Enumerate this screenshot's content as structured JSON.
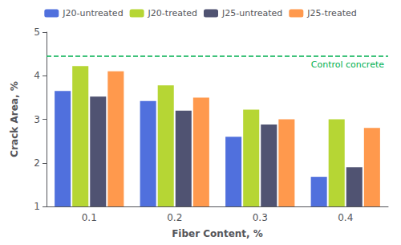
{
  "chart_data": {
    "type": "bar",
    "categories": [
      "0.1",
      "0.2",
      "0.3",
      "0.4"
    ],
    "series": [
      {
        "name": "J20-untreated",
        "values": [
          3.65,
          3.42,
          2.6,
          1.68
        ]
      },
      {
        "name": "J20-treated",
        "values": [
          4.22,
          3.78,
          3.22,
          3.0
        ]
      },
      {
        "name": "J25-untreated",
        "values": [
          3.52,
          3.2,
          2.88,
          1.9
        ]
      },
      {
        "name": "J25-treated",
        "values": [
          4.1,
          3.5,
          3.0,
          2.8
        ]
      }
    ],
    "xlabel": "Fiber Content, %",
    "ylabel": "Crack Area, %",
    "ylim": [
      1.0,
      5.0
    ],
    "yticks": [
      1,
      2,
      3,
      4,
      5
    ],
    "grid": false,
    "legend": "top",
    "annotations": [
      {
        "text": "Control concrete",
        "y": 4.45,
        "color": "#00b050",
        "line_style": "dashed"
      }
    ]
  }
}
